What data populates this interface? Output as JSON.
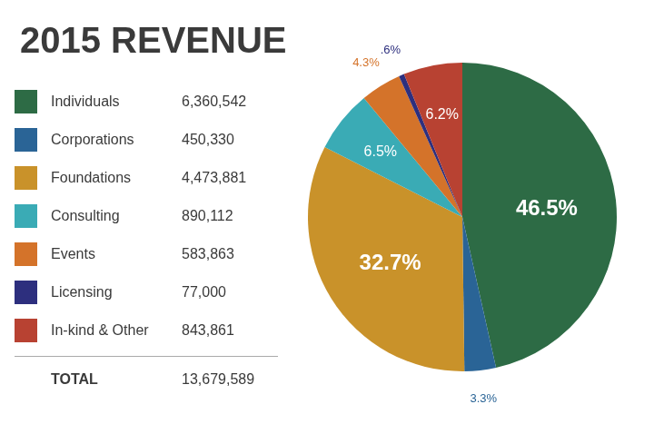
{
  "chart_data": {
    "type": "pie",
    "title": "2015 REVENUE",
    "categories": [
      "Individuals",
      "Corporations",
      "Foundations",
      "Consulting",
      "Events",
      "Licensing",
      "In-kind & Other"
    ],
    "values": [
      6360542,
      450330,
      4473881,
      890112,
      583863,
      77000,
      843861
    ],
    "value_labels": [
      "6,360,542",
      "450,330",
      "4,473,881",
      "890,112",
      "583,863",
      "77,000",
      "843,861"
    ],
    "total_name": "TOTAL",
    "total": 13679589,
    "total_label": "13,679,589",
    "percentages": [
      46.5,
      3.3,
      32.7,
      6.5,
      4.3,
      0.6,
      6.2
    ],
    "percentage_labels": [
      "46.5%",
      "3.3%",
      "32.7%",
      "6.5%",
      "4.3%",
      ".6%",
      "6.2%"
    ],
    "data_labels": true,
    "colors": [
      "#2d6b45",
      "#2a6496",
      "#c9922a",
      "#3aabb5",
      "#d4732a",
      "#2d2f7e",
      "#b84232"
    ]
  }
}
